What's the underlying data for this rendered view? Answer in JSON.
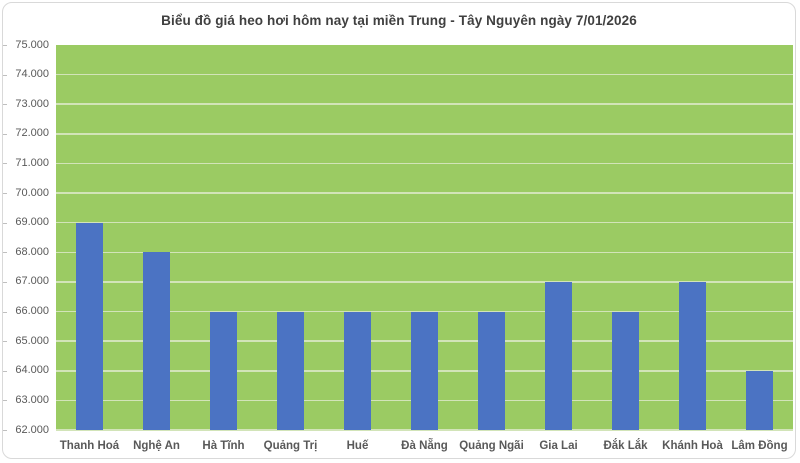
{
  "chart_data": {
    "type": "bar",
    "title": "Biểu đồ giá heo hơi hôm nay tại miền Trung - Tây Nguyên ngày 7/01/2026",
    "categories": [
      "Thanh Hoá",
      "Nghệ An",
      "Hà Tĩnh",
      "Quảng Trị",
      "Huế",
      "Đà Nẵng",
      "Quảng Ngãi",
      "Gia Lai",
      "Đắk Lắk",
      "Khánh Hoà",
      "Lâm Đồng"
    ],
    "values": [
      69000,
      68000,
      66000,
      66000,
      66000,
      66000,
      66000,
      67000,
      66000,
      67000,
      64000
    ],
    "xlabel": "",
    "ylabel": "",
    "ylim": [
      62000,
      75000
    ],
    "y_tick_step": 1000,
    "y_tick_labels": [
      "75.000",
      "74.000",
      "73.000",
      "72.000",
      "71.000",
      "70.000",
      "69.000",
      "68.000",
      "67.000",
      "66.000",
      "65.000",
      "64.000",
      "63.000",
      "62.000"
    ],
    "grid": true,
    "legend_position": "none",
    "colors": {
      "bar": "#4b73c3",
      "plot_background": "#9bcb63",
      "gridline": "#d2e4b8",
      "axis_text": "#595959",
      "title_text": "#404040",
      "frame_border": "#d9d9d9",
      "tick_mark": "#bfbfbf"
    }
  }
}
